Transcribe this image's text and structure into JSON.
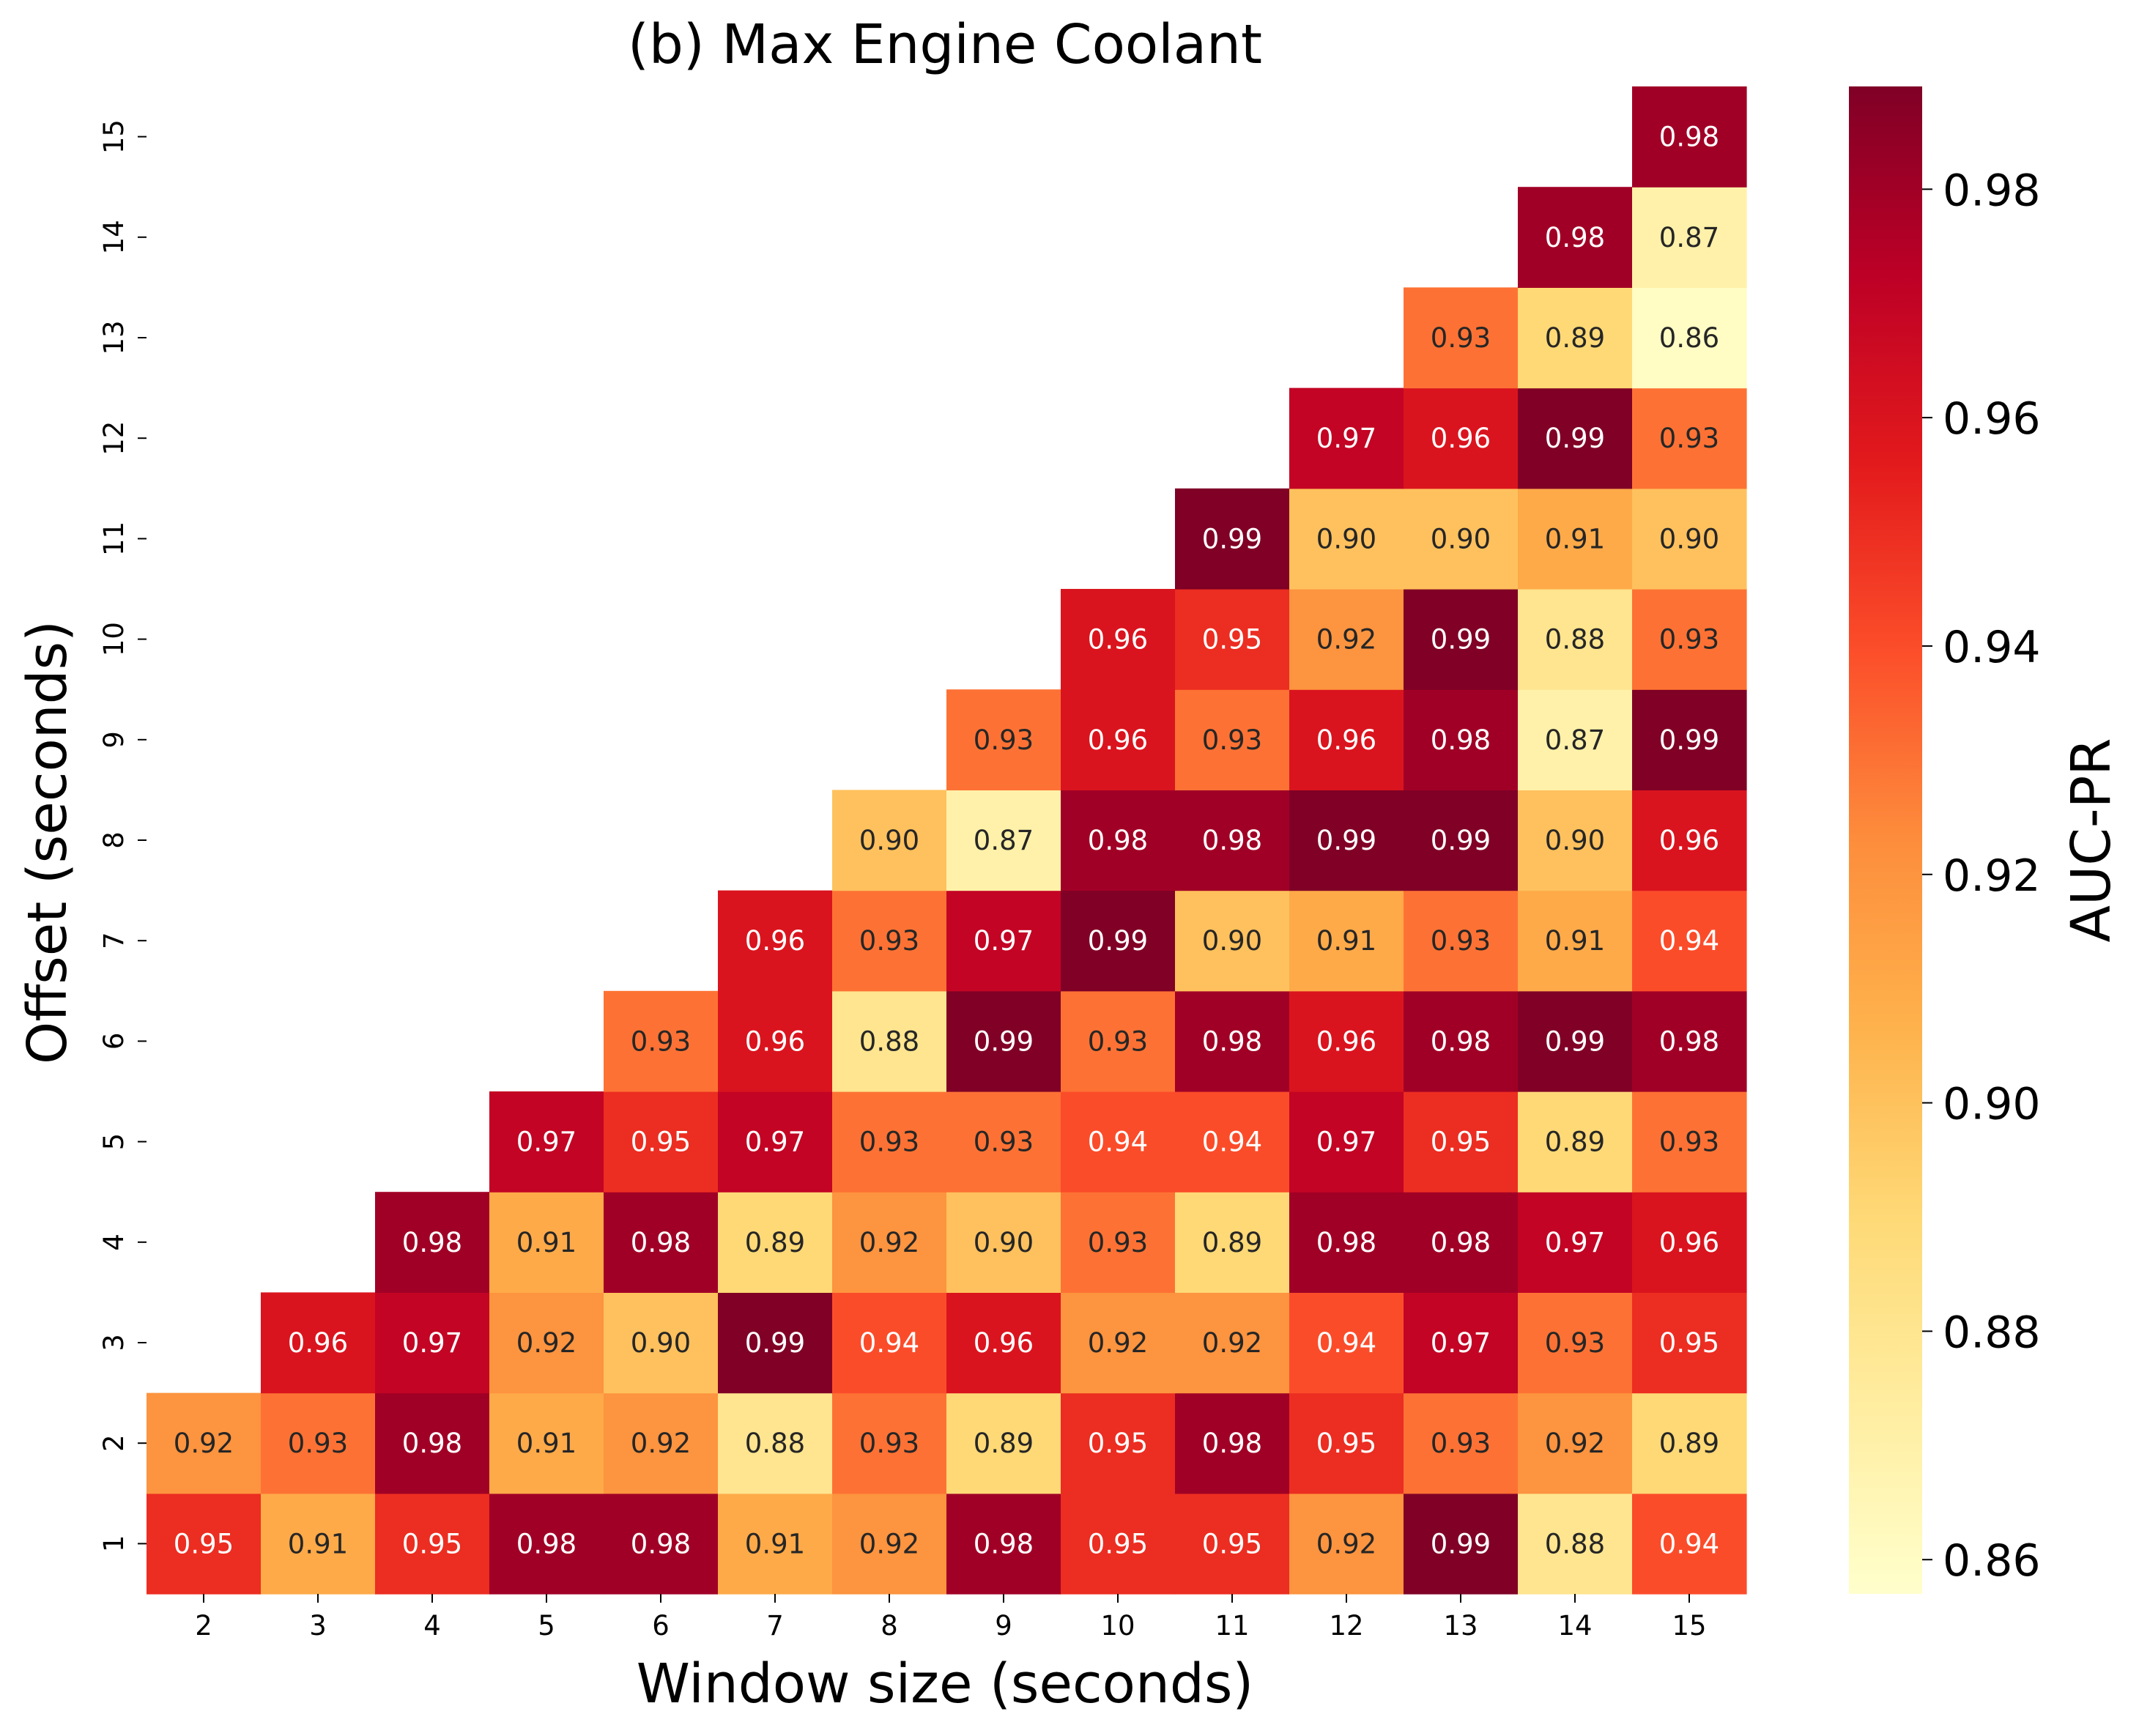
{
  "chart_data": {
    "type": "heatmap",
    "title": "(b) Max Engine Coolant",
    "xlabel": "Window size (seconds)",
    "ylabel": "Offset (seconds)",
    "colorbar_label": "AUC-PR",
    "colormap": "YlOrRd",
    "color_range": [
      0.857,
      0.989
    ],
    "colorbar_ticks": [
      "0.86",
      "0.88",
      "0.90",
      "0.92",
      "0.94",
      "0.96",
      "0.98"
    ],
    "x_ticks": [
      "2",
      "3",
      "4",
      "5",
      "6",
      "7",
      "8",
      "9",
      "10",
      "11",
      "12",
      "13",
      "14",
      "15"
    ],
    "y_ticks": [
      "1",
      "2",
      "3",
      "4",
      "5",
      "6",
      "7",
      "8",
      "9",
      "10",
      "11",
      "12",
      "13",
      "14",
      "15"
    ],
    "rows": [
      {
        "offset": "1",
        "values": [
          0.95,
          0.91,
          0.95,
          0.98,
          0.98,
          0.91,
          0.92,
          0.98,
          0.95,
          0.95,
          0.92,
          0.99,
          0.88,
          0.94
        ]
      },
      {
        "offset": "2",
        "values": [
          0.92,
          0.93,
          0.98,
          0.91,
          0.92,
          0.88,
          0.93,
          0.89,
          0.95,
          0.98,
          0.95,
          0.93,
          0.92,
          0.89
        ]
      },
      {
        "offset": "3",
        "values": [
          null,
          0.96,
          0.97,
          0.92,
          0.9,
          0.99,
          0.94,
          0.96,
          0.92,
          0.92,
          0.94,
          0.97,
          0.93,
          0.95
        ]
      },
      {
        "offset": "4",
        "values": [
          null,
          null,
          0.98,
          0.91,
          0.98,
          0.89,
          0.92,
          0.9,
          0.93,
          0.89,
          0.98,
          0.98,
          0.97,
          0.96
        ]
      },
      {
        "offset": "5",
        "values": [
          null,
          null,
          null,
          0.97,
          0.95,
          0.97,
          0.93,
          0.93,
          0.94,
          0.94,
          0.97,
          0.95,
          0.89,
          0.93
        ]
      },
      {
        "offset": "6",
        "values": [
          null,
          null,
          null,
          null,
          0.93,
          0.96,
          0.88,
          0.99,
          0.93,
          0.98,
          0.96,
          0.98,
          0.99,
          0.98
        ]
      },
      {
        "offset": "7",
        "values": [
          null,
          null,
          null,
          null,
          null,
          0.96,
          0.93,
          0.97,
          0.99,
          0.9,
          0.91,
          0.93,
          0.91,
          0.94
        ]
      },
      {
        "offset": "8",
        "values": [
          null,
          null,
          null,
          null,
          null,
          null,
          0.9,
          0.87,
          0.98,
          0.98,
          0.99,
          0.99,
          0.9,
          0.96
        ]
      },
      {
        "offset": "9",
        "values": [
          null,
          null,
          null,
          null,
          null,
          null,
          null,
          0.93,
          0.96,
          0.93,
          0.96,
          0.98,
          0.87,
          0.99
        ]
      },
      {
        "offset": "10",
        "values": [
          null,
          null,
          null,
          null,
          null,
          null,
          null,
          null,
          0.96,
          0.95,
          0.92,
          0.99,
          0.88,
          0.93
        ]
      },
      {
        "offset": "11",
        "values": [
          null,
          null,
          null,
          null,
          null,
          null,
          null,
          null,
          null,
          0.99,
          0.9,
          0.9,
          0.91,
          0.9
        ]
      },
      {
        "offset": "12",
        "values": [
          null,
          null,
          null,
          null,
          null,
          null,
          null,
          null,
          null,
          null,
          0.97,
          0.96,
          0.99,
          0.93
        ]
      },
      {
        "offset": "13",
        "values": [
          null,
          null,
          null,
          null,
          null,
          null,
          null,
          null,
          null,
          null,
          null,
          0.93,
          0.89,
          0.86
        ]
      },
      {
        "offset": "14",
        "values": [
          null,
          null,
          null,
          null,
          null,
          null,
          null,
          null,
          null,
          null,
          null,
          null,
          0.98,
          0.87
        ]
      },
      {
        "offset": "15",
        "values": [
          null,
          null,
          null,
          null,
          null,
          null,
          null,
          null,
          null,
          null,
          null,
          null,
          null,
          0.98
        ]
      }
    ]
  }
}
